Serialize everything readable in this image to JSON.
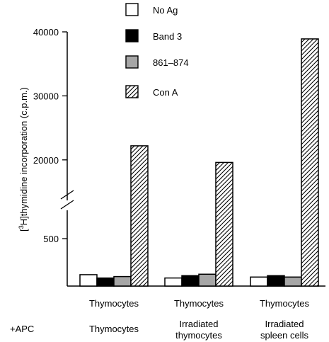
{
  "chart_data": {
    "type": "bar",
    "ylabel_prefix": "[",
    "ylabel_sup": "3",
    "ylabel_rest": "H]thymidine incorporation (c.p.m.)",
    "y_axis_break": true,
    "lower_segment": {
      "ylim": [
        0,
        1000
      ],
      "ticks": [
        500
      ]
    },
    "upper_segment": {
      "ylim": [
        15000,
        40000
      ],
      "ticks": [
        20000,
        30000,
        40000
      ]
    },
    "cells_row": [
      "Thymocytes",
      "Thymocytes",
      "Thymocytes"
    ],
    "apc_label": "+APC",
    "apc_row": [
      [
        "Thymocytes"
      ],
      [
        "Irradiated",
        "thymocytes"
      ],
      [
        "Irradiated",
        "spleen cells"
      ]
    ],
    "series": [
      {
        "name": "No Ag",
        "pattern": "white",
        "values": [
          120,
          85,
          95
        ]
      },
      {
        "name": "Band 3",
        "pattern": "black",
        "values": [
          85,
          110,
          110
        ]
      },
      {
        "name": "861–874",
        "pattern": "gray",
        "values": [
          100,
          125,
          95
        ]
      },
      {
        "name": "Con A",
        "pattern": "hatch",
        "values": [
          22200,
          19600,
          38900
        ]
      }
    ],
    "legend_position": "top"
  }
}
